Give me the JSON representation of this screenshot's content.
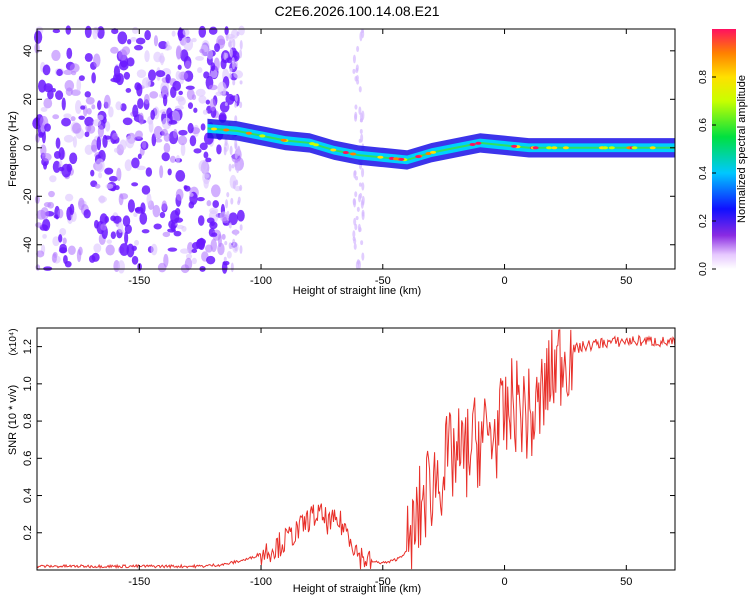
{
  "title": "C2E6.2026.100.14.08.E21",
  "chart_data": [
    {
      "type": "heatmap",
      "name": "spectrogram",
      "xlabel": "Height of straight line (km)",
      "ylabel": "Frequency (Hz)",
      "xlim": [
        -192,
        70
      ],
      "ylim": [
        -50,
        49
      ],
      "xticks": [
        -150,
        -100,
        -50,
        0,
        50
      ],
      "yticks": [
        -40,
        -20,
        0,
        20,
        40
      ],
      "ridge": [
        [
          -122,
          8
        ],
        [
          -110,
          7
        ],
        [
          -100,
          5
        ],
        [
          -90,
          3
        ],
        [
          -80,
          2
        ],
        [
          -70,
          -1
        ],
        [
          -60,
          -3
        ],
        [
          -50,
          -4
        ],
        [
          -40,
          -5
        ],
        [
          -30,
          -2
        ],
        [
          -20,
          0
        ],
        [
          -10,
          2
        ],
        [
          0,
          1
        ],
        [
          10,
          0
        ],
        [
          30,
          0
        ],
        [
          50,
          0
        ],
        [
          70,
          0
        ]
      ],
      "noise_region_x": [
        -192,
        -108
      ],
      "colorbar": {
        "label": "Normalized spectral amplitude",
        "range": [
          0,
          1
        ],
        "ticks": [
          "0.0",
          "0.2",
          "0.4",
          "0.6",
          "0.8"
        ]
      }
    },
    {
      "type": "line",
      "name": "snr",
      "xlabel": "Height of straight line (km)",
      "ylabel": "SNR (10 * v/v)",
      "multiplier": "(x10⁴)",
      "xlim": [
        -192,
        70
      ],
      "ylim": [
        0,
        1.3
      ],
      "xticks": [
        -150,
        -100,
        -50,
        0,
        50
      ],
      "yticks": [
        "0.2",
        "0.4",
        "0.6",
        "0.8",
        "1.0",
        "1.2"
      ],
      "series": [
        {
          "name": "SNR",
          "color": "#e8302a",
          "x": [
            -192,
            -180,
            -160,
            -140,
            -125,
            -115,
            -105,
            -98,
            -92,
            -88,
            -84,
            -80,
            -76,
            -72,
            -68,
            -64,
            -60,
            -56,
            -52,
            -48,
            -44,
            -40,
            -37,
            -34,
            -31,
            -28,
            -25,
            -22,
            -20,
            -17,
            -14,
            -11,
            -8,
            -5,
            -2,
            0,
            4,
            8,
            12,
            16,
            20,
            24,
            28,
            32,
            40,
            50,
            60,
            70
          ],
          "y": [
            0.02,
            0.02,
            0.02,
            0.02,
            0.02,
            0.03,
            0.06,
            0.1,
            0.14,
            0.18,
            0.22,
            0.28,
            0.3,
            0.25,
            0.26,
            0.2,
            0.08,
            0.05,
            0.04,
            0.04,
            0.06,
            0.1,
            0.2,
            0.35,
            0.45,
            0.5,
            0.55,
            0.6,
            0.62,
            0.6,
            0.66,
            0.7,
            0.72,
            0.72,
            0.76,
            0.8,
            0.9,
            0.85,
            0.8,
            0.95,
            1.08,
            1.15,
            1.18,
            1.2,
            1.22,
            1.23,
            1.23,
            1.22
          ]
        }
      ]
    }
  ],
  "colors": {
    "line": "#e8302a",
    "noise": "#6a18ff"
  }
}
